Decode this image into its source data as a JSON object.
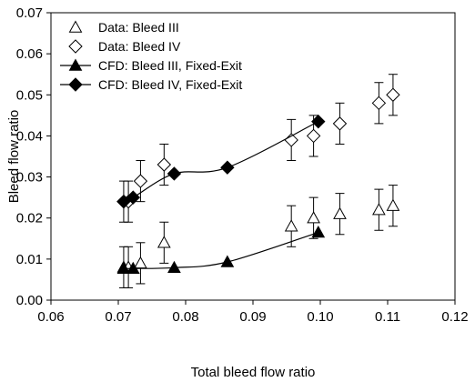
{
  "chart_data": {
    "type": "scatter",
    "xlabel": "Total bleed flow ratio",
    "ylabel": "Bleed flow ratio",
    "xlim": [
      0.06,
      0.12
    ],
    "ylim": [
      0.0,
      0.07
    ],
    "x_ticks": [
      "0.06",
      "0.07",
      "0.08",
      "0.09",
      "0.10",
      "0.11",
      "0.12"
    ],
    "y_ticks": [
      "0.00",
      "0.01",
      "0.02",
      "0.03",
      "0.04",
      "0.05",
      "0.06",
      "0.07"
    ],
    "grid": false,
    "legend_position": "top-left",
    "series": [
      {
        "name": "Data: Bleed III",
        "marker": "triangle-open",
        "line": false,
        "x": [
          0.0708,
          0.0715,
          0.0733,
          0.0768,
          0.0957,
          0.099,
          0.1029,
          0.1087,
          0.1108
        ],
        "y": [
          0.008,
          0.008,
          0.009,
          0.014,
          0.018,
          0.02,
          0.021,
          0.022,
          0.023
        ],
        "error": [
          0.005,
          0.005,
          0.005,
          0.005,
          0.005,
          0.005,
          0.005,
          0.005,
          0.005
        ]
      },
      {
        "name": "Data: Bleed IV",
        "marker": "diamond-open",
        "line": false,
        "x": [
          0.0708,
          0.0715,
          0.0733,
          0.0768,
          0.0957,
          0.099,
          0.1029,
          0.1087,
          0.1108
        ],
        "y": [
          0.024,
          0.024,
          0.029,
          0.033,
          0.039,
          0.04,
          0.043,
          0.048,
          0.05
        ],
        "error": [
          0.005,
          0.005,
          0.005,
          0.005,
          0.005,
          0.005,
          0.005,
          0.005,
          0.005
        ]
      },
      {
        "name": "CFD: Bleed III, Fixed-Exit",
        "marker": "triangle-filled",
        "line": true,
        "x": [
          0.0708,
          0.0722,
          0.0783,
          0.0862,
          0.0997
        ],
        "y": [
          0.0077,
          0.0077,
          0.0079,
          0.0093,
          0.0165
        ]
      },
      {
        "name": "CFD: Bleed IV, Fixed-Exit",
        "marker": "diamond-filled",
        "line": true,
        "x": [
          0.0708,
          0.0722,
          0.0783,
          0.0862,
          0.0997
        ],
        "y": [
          0.024,
          0.025,
          0.0308,
          0.0323,
          0.0435
        ]
      }
    ]
  }
}
